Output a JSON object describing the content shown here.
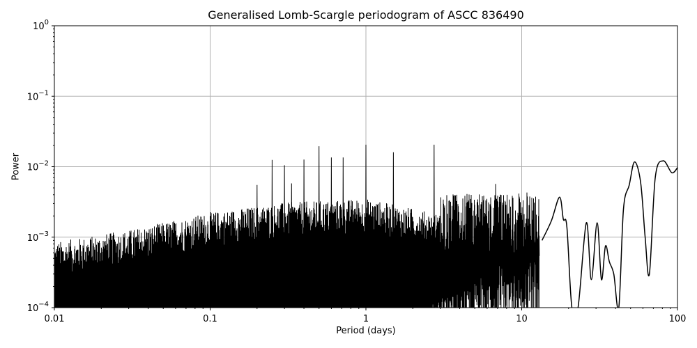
{
  "chart_data": {
    "type": "line",
    "title": "Generalised Lomb-Scargle periodogram of ASCC 836490",
    "xlabel": "Period (days)",
    "ylabel": "Power",
    "xscale": "log",
    "yscale": "log",
    "xlim": [
      0.01,
      100
    ],
    "ylim": [
      0.0001,
      1
    ],
    "xticks": [
      "0.01",
      "0.1",
      "1",
      "10",
      "100"
    ],
    "yticks": [
      {
        "base": "10",
        "exp": "0"
      },
      {
        "base": "10",
        "exp": "−1"
      },
      {
        "base": "10",
        "exp": "−2"
      },
      {
        "base": "10",
        "exp": "−3"
      },
      {
        "base": "10",
        "exp": "−4"
      }
    ],
    "grid": true,
    "line_color": "#000000",
    "grid_color": "#b0b0b0",
    "noise_envelope": [
      {
        "period": 0.01,
        "power": 0.0006
      },
      {
        "period": 0.03,
        "power": 0.0009
      },
      {
        "period": 0.1,
        "power": 0.0016
      },
      {
        "period": 0.3,
        "power": 0.0022
      },
      {
        "period": 1.0,
        "power": 0.0025
      },
      {
        "period": 3.0,
        "power": 0.0015
      }
    ],
    "notable_peaks": [
      {
        "period": 0.2,
        "power": 0.0055
      },
      {
        "period": 0.25,
        "power": 0.0125
      },
      {
        "period": 0.3,
        "power": 0.0105
      },
      {
        "period": 0.333,
        "power": 0.0058
      },
      {
        "period": 0.4,
        "power": 0.0126
      },
      {
        "period": 0.5,
        "power": 0.0195
      },
      {
        "period": 0.6,
        "power": 0.0135
      },
      {
        "period": 0.714,
        "power": 0.0135
      },
      {
        "period": 1.0,
        "power": 0.0205
      },
      {
        "period": 1.5,
        "power": 0.016
      },
      {
        "period": 2.74,
        "power": 0.0205
      },
      {
        "period": 6.8,
        "power": 0.0057
      },
      {
        "period": 10.8,
        "power": 0.0043
      },
      {
        "period": 17.5,
        "power": 0.0037
      },
      {
        "period": 26,
        "power": 0.0016
      },
      {
        "period": 30,
        "power": 0.0016
      },
      {
        "period": 34.5,
        "power": 0.00075
      },
      {
        "period": 53,
        "power": 0.0117
      },
      {
        "period": 81,
        "power": 0.0121
      },
      {
        "period": 100,
        "power": 0.0097
      }
    ],
    "smooth_tail": [
      {
        "period": 13.5,
        "power": 0.0009
      },
      {
        "period": 15.5,
        "power": 0.0017
      },
      {
        "period": 17.5,
        "power": 0.0037
      },
      {
        "period": 18.5,
        "power": 0.0018
      },
      {
        "period": 19.5,
        "power": 0.0014
      },
      {
        "period": 21,
        "power": 0.0001
      },
      {
        "period": 23,
        "power": 0.0001
      },
      {
        "period": 26,
        "power": 0.0016
      },
      {
        "period": 28,
        "power": 0.00025
      },
      {
        "period": 30.5,
        "power": 0.0016
      },
      {
        "period": 32.5,
        "power": 0.00025
      },
      {
        "period": 34.5,
        "power": 0.00075
      },
      {
        "period": 36.5,
        "power": 0.00045
      },
      {
        "period": 39,
        "power": 0.0003
      },
      {
        "period": 42,
        "power": 0.0001
      },
      {
        "period": 45,
        "power": 0.0025
      },
      {
        "period": 49,
        "power": 0.0055
      },
      {
        "period": 53,
        "power": 0.0117
      },
      {
        "period": 58,
        "power": 0.006
      },
      {
        "period": 62,
        "power": 0.001
      },
      {
        "period": 66,
        "power": 0.0003
      },
      {
        "period": 72,
        "power": 0.007
      },
      {
        "period": 81,
        "power": 0.0121
      },
      {
        "period": 92,
        "power": 0.0082
      },
      {
        "period": 100,
        "power": 0.0097
      }
    ]
  }
}
